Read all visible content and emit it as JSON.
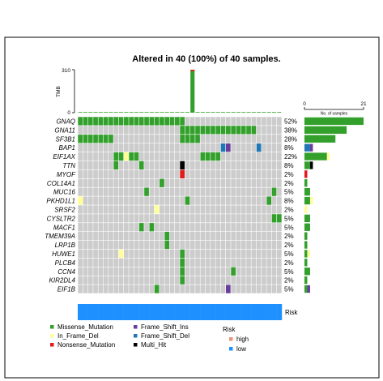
{
  "chart_data": {
    "type": "heatmap",
    "title": "Altered in 40 (100%) of 40 samples.",
    "n_samples": 40,
    "tmb": {
      "ylabel": "TMB",
      "ylim": [
        0,
        310
      ],
      "ticks": [
        "310",
        "0"
      ],
      "values": [
        2,
        2,
        2,
        1,
        2,
        1,
        2,
        2,
        2,
        2,
        1,
        2,
        1,
        2,
        2,
        2,
        1,
        2,
        2,
        1,
        2,
        2,
        310,
        2,
        1,
        2,
        2,
        1,
        2,
        2,
        2,
        1,
        2,
        2,
        2,
        2,
        1,
        2,
        3,
        1
      ],
      "top_sample_nonsense_segment": 10
    },
    "side_bar": {
      "label": "No. of samples",
      "xlim": [
        0,
        21
      ],
      "ticks": [
        "0",
        "21"
      ]
    },
    "genes": [
      {
        "name": "GNAQ",
        "pct": "52%",
        "alterations": [
          [
            "Missense_Mutation",
            [
              0,
              1,
              2,
              3,
              4,
              5,
              6,
              7,
              8,
              9,
              10,
              11,
              12,
              13,
              14,
              15,
              16,
              17,
              18,
              19,
              20
            ]
          ]
        ]
      },
      {
        "name": "GNA11",
        "pct": "38%",
        "alterations": [
          [
            "Missense_Mutation",
            [
              20,
              21,
              22,
              23,
              24,
              25,
              26,
              27,
              28,
              29,
              30,
              31,
              32,
              33,
              34
            ]
          ]
        ]
      },
      {
        "name": "SF3B1",
        "pct": "28%",
        "alterations": [
          [
            "Missense_Mutation",
            [
              0,
              1,
              2,
              3,
              4,
              5,
              6,
              20,
              21,
              22,
              23
            ]
          ]
        ]
      },
      {
        "name": "BAP1",
        "pct": "8%",
        "alterations": [
          [
            "Frame_Shift_Del",
            [
              28,
              35
            ]
          ],
          [
            "Frame_Shift_Ins",
            [
              29
            ]
          ]
        ]
      },
      {
        "name": "EIF1AX",
        "pct": "22%",
        "alterations": [
          [
            "Missense_Mutation",
            [
              7,
              8,
              10,
              11,
              24,
              25,
              26,
              27
            ]
          ],
          [
            "In_Frame_Del",
            [
              9
            ]
          ]
        ]
      },
      {
        "name": "TTN",
        "pct": "8%",
        "alterations": [
          [
            "Missense_Mutation",
            [
              7,
              12
            ]
          ],
          [
            "Multi_Hit",
            [
              20
            ]
          ]
        ]
      },
      {
        "name": "MYOF",
        "pct": "2%",
        "alterations": [
          [
            "Nonsense_Mutation",
            [
              20
            ]
          ]
        ]
      },
      {
        "name": "COL14A1",
        "pct": "2%",
        "alterations": [
          [
            "Missense_Mutation",
            [
              16
            ]
          ]
        ]
      },
      {
        "name": "MUC16",
        "pct": "5%",
        "alterations": [
          [
            "Missense_Mutation",
            [
              13,
              38
            ]
          ]
        ]
      },
      {
        "name": "PKHD1L1",
        "pct": "8%",
        "alterations": [
          [
            "Missense_Mutation",
            [
              21,
              37
            ]
          ],
          [
            "In_Frame_Del",
            [
              0
            ]
          ]
        ]
      },
      {
        "name": "SRSF2",
        "pct": "2%",
        "alterations": [
          [
            "In_Frame_Del",
            [
              15
            ]
          ]
        ]
      },
      {
        "name": "CYSLTR2",
        "pct": "5%",
        "alterations": [
          [
            "Missense_Mutation",
            [
              38,
              39
            ]
          ]
        ]
      },
      {
        "name": "MACF1",
        "pct": "5%",
        "alterations": [
          [
            "Missense_Mutation",
            [
              12,
              14
            ]
          ]
        ]
      },
      {
        "name": "TMEM39A",
        "pct": "2%",
        "alterations": [
          [
            "Missense_Mutation",
            [
              17
            ]
          ]
        ]
      },
      {
        "name": "LRP1B",
        "pct": "2%",
        "alterations": [
          [
            "Missense_Mutation",
            [
              17
            ]
          ]
        ]
      },
      {
        "name": "HUWE1",
        "pct": "5%",
        "alterations": [
          [
            "Missense_Mutation",
            [
              20
            ]
          ],
          [
            "In_Frame_Del",
            [
              8
            ]
          ]
        ]
      },
      {
        "name": "PLCB4",
        "pct": "2%",
        "alterations": [
          [
            "Missense_Mutation",
            [
              20
            ]
          ]
        ]
      },
      {
        "name": "CCN4",
        "pct": "5%",
        "alterations": [
          [
            "Missense_Mutation",
            [
              20,
              30
            ]
          ]
        ]
      },
      {
        "name": "KIR2DL4",
        "pct": "2%",
        "alterations": [
          [
            "Missense_Mutation",
            [
              20
            ]
          ]
        ]
      },
      {
        "name": "EIF1B",
        "pct": "5%",
        "alterations": [
          [
            "Missense_Mutation",
            [
              15
            ]
          ],
          [
            "Frame_Shift_Ins",
            [
              29
            ]
          ]
        ]
      }
    ],
    "risk": {
      "label": "Risk",
      "values": [
        "low",
        "low",
        "low",
        "low",
        "low",
        "low",
        "low",
        "low",
        "low",
        "low",
        "low",
        "low",
        "low",
        "low",
        "low",
        "low",
        "low",
        "low",
        "low",
        "low",
        "low",
        "low",
        "low",
        "low",
        "low",
        "low",
        "low",
        "low",
        "low",
        "low",
        "low",
        "low",
        "low",
        "low",
        "low",
        "low",
        "low",
        "low",
        "low",
        "low"
      ]
    },
    "legend": {
      "items": [
        {
          "label": "Missense_Mutation",
          "color": "#33a02c"
        },
        {
          "label": "In_Frame_Del",
          "color": "#ffff99"
        },
        {
          "label": "Nonsense_Mutation",
          "color": "#e31a1c"
        },
        {
          "label": "Frame_Shift_Ins",
          "color": "#6a3d9a"
        },
        {
          "label": "Frame_Shift_Del",
          "color": "#1f78b4"
        },
        {
          "label": "Multi_Hit",
          "color": "#000000"
        }
      ],
      "risk_title": "Risk",
      "risk_items": [
        {
          "label": "high",
          "color": "#e9967a"
        },
        {
          "label": "low",
          "color": "#1e90ff"
        }
      ]
    },
    "background_color": "#cccccc",
    "grid": true
  }
}
